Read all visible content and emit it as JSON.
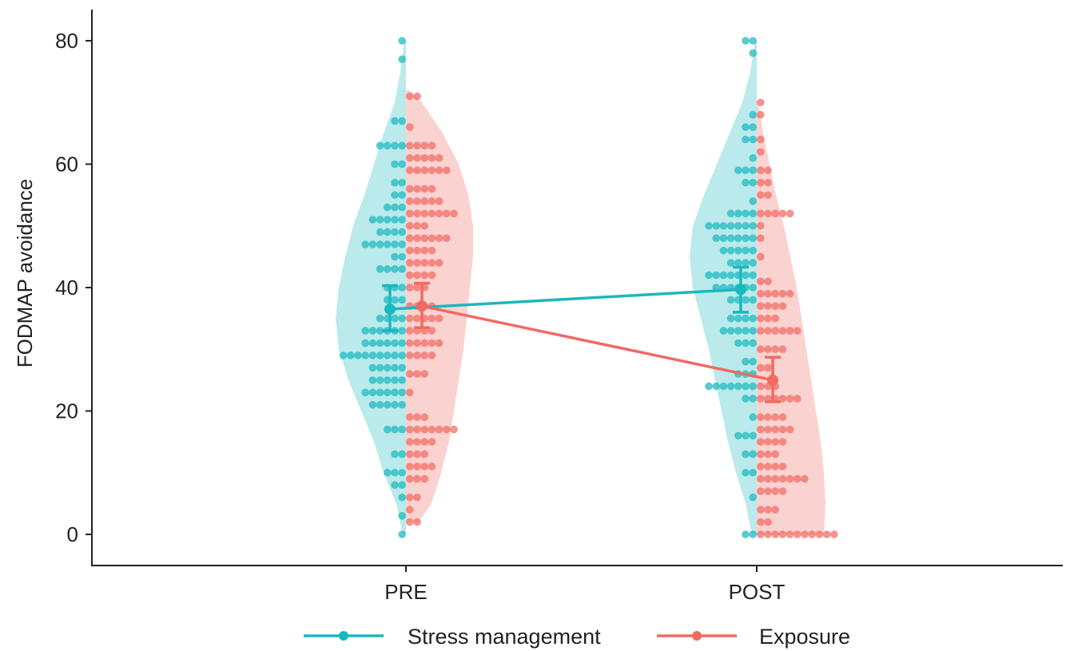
{
  "chart_data": {
    "type": "violin-dot",
    "title": "",
    "xlabel": "",
    "ylabel": "FODMAP avoidance",
    "categories": [
      "PRE",
      "POST"
    ],
    "ylim": [
      0,
      80
    ],
    "yticks": [
      0,
      20,
      40,
      60,
      80
    ],
    "grid": false,
    "legend_position": "bottom",
    "series": [
      {
        "name": "Stress management",
        "color": "#1ab8be",
        "side": "left",
        "means": [
          36.5,
          39.7
        ],
        "ci_low": [
          33.0,
          36.0
        ],
        "ci_high": [
          40.3,
          43.3
        ],
        "violin": [
          {
            "y": [
              0,
              5,
              10,
              15,
              20,
              25,
              30,
              35,
              40,
              45,
              50,
              55,
              60,
              65,
              70,
              75,
              80
            ],
            "w": [
              0.02,
              0.06,
              0.14,
              0.2,
              0.28,
              0.36,
              0.42,
              0.44,
              0.42,
              0.38,
              0.33,
              0.26,
              0.2,
              0.14,
              0.07,
              0.035,
              0.01
            ]
          },
          {
            "y": [
              0,
              5,
              10,
              15,
              20,
              25,
              30,
              35,
              40,
              45,
              50,
              55,
              60,
              65,
              70,
              75,
              80
            ],
            "w": [
              0.03,
              0.07,
              0.13,
              0.18,
              0.22,
              0.26,
              0.3,
              0.35,
              0.4,
              0.42,
              0.4,
              0.33,
              0.25,
              0.17,
              0.09,
              0.04,
              0.01
            ]
          }
        ],
        "dots": [
          [
            [
              0,
              1
            ],
            [
              3,
              1
            ],
            [
              6,
              1
            ],
            [
              8,
              2
            ],
            [
              10,
              3
            ],
            [
              13,
              2
            ],
            [
              17,
              3
            ],
            [
              21,
              5
            ],
            [
              23,
              6
            ],
            [
              25,
              5
            ],
            [
              27,
              5
            ],
            [
              29,
              9
            ],
            [
              31,
              6
            ],
            [
              33,
              6
            ],
            [
              35,
              4
            ],
            [
              38,
              3
            ],
            [
              40,
              3
            ],
            [
              43,
              4
            ],
            [
              45,
              2
            ],
            [
              47,
              6
            ],
            [
              49,
              4
            ],
            [
              51,
              5
            ],
            [
              53,
              3
            ],
            [
              55,
              2
            ],
            [
              57,
              2
            ],
            [
              60,
              2
            ],
            [
              63,
              4
            ],
            [
              67,
              2
            ],
            [
              77,
              1
            ],
            [
              80,
              1
            ]
          ],
          [
            [
              0,
              2
            ],
            [
              6,
              1
            ],
            [
              10,
              2
            ],
            [
              13,
              2
            ],
            [
              16,
              3
            ],
            [
              19,
              1
            ],
            [
              22,
              2
            ],
            [
              24,
              7
            ],
            [
              26,
              3
            ],
            [
              28,
              2
            ],
            [
              31,
              3
            ],
            [
              33,
              5
            ],
            [
              35,
              4
            ],
            [
              38,
              4
            ],
            [
              40,
              6
            ],
            [
              42,
              7
            ],
            [
              44,
              4
            ],
            [
              46,
              5
            ],
            [
              48,
              6
            ],
            [
              50,
              7
            ],
            [
              52,
              4
            ],
            [
              54,
              1
            ],
            [
              57,
              2
            ],
            [
              59,
              3
            ],
            [
              61,
              1
            ],
            [
              64,
              2
            ],
            [
              66,
              2
            ],
            [
              68,
              1
            ],
            [
              78,
              1
            ],
            [
              80,
              2
            ]
          ]
        ]
      },
      {
        "name": "Exposure",
        "color": "#f06a62",
        "side": "right",
        "means": [
          37.0,
          25.0
        ],
        "ci_low": [
          33.5,
          21.5
        ],
        "ci_high": [
          40.7,
          28.7
        ],
        "violin": [
          {
            "y": [
              2,
              5,
              10,
              15,
              20,
              25,
              30,
              35,
              40,
              45,
              50,
              55,
              60,
              65,
              70,
              72
            ],
            "w": [
              0.08,
              0.16,
              0.22,
              0.27,
              0.3,
              0.33,
              0.36,
              0.38,
              0.4,
              0.42,
              0.42,
              0.39,
              0.33,
              0.23,
              0.1,
              0.02
            ]
          },
          {
            "y": [
              0,
              5,
              10,
              15,
              20,
              25,
              30,
              35,
              40,
              45,
              50,
              55,
              60,
              65,
              70
            ],
            "w": [
              0.42,
              0.43,
              0.42,
              0.4,
              0.37,
              0.34,
              0.31,
              0.28,
              0.25,
              0.21,
              0.17,
              0.12,
              0.08,
              0.04,
              0.01
            ]
          }
        ],
        "dots": [
          [
            [
              2,
              2
            ],
            [
              4,
              1
            ],
            [
              6,
              2
            ],
            [
              9,
              3
            ],
            [
              11,
              4
            ],
            [
              13,
              3
            ],
            [
              15,
              4
            ],
            [
              17,
              7
            ],
            [
              19,
              3
            ],
            [
              23,
              1
            ],
            [
              26,
              3
            ],
            [
              29,
              4
            ],
            [
              31,
              5
            ],
            [
              33,
              4
            ],
            [
              35,
              5
            ],
            [
              37,
              4
            ],
            [
              40,
              3
            ],
            [
              42,
              4
            ],
            [
              44,
              5
            ],
            [
              46,
              4
            ],
            [
              48,
              6
            ],
            [
              50,
              3
            ],
            [
              52,
              7
            ],
            [
              54,
              5
            ],
            [
              56,
              4
            ],
            [
              59,
              6
            ],
            [
              61,
              5
            ],
            [
              63,
              4
            ],
            [
              66,
              1
            ],
            [
              71,
              2
            ]
          ],
          [
            [
              0,
              11
            ],
            [
              2,
              2
            ],
            [
              4,
              3
            ],
            [
              7,
              4
            ],
            [
              9,
              7
            ],
            [
              11,
              4
            ],
            [
              13,
              3
            ],
            [
              15,
              4
            ],
            [
              17,
              5
            ],
            [
              19,
              4
            ],
            [
              22,
              6
            ],
            [
              24,
              3
            ],
            [
              27,
              2
            ],
            [
              30,
              4
            ],
            [
              33,
              6
            ],
            [
              35,
              3
            ],
            [
              37,
              4
            ],
            [
              39,
              5
            ],
            [
              41,
              2
            ],
            [
              45,
              1
            ],
            [
              48,
              1
            ],
            [
              50,
              1
            ],
            [
              52,
              5
            ],
            [
              55,
              2
            ],
            [
              57,
              2
            ],
            [
              59,
              2
            ],
            [
              62,
              1
            ],
            [
              64,
              1
            ],
            [
              68,
              1
            ],
            [
              70,
              1
            ]
          ]
        ]
      }
    ]
  }
}
